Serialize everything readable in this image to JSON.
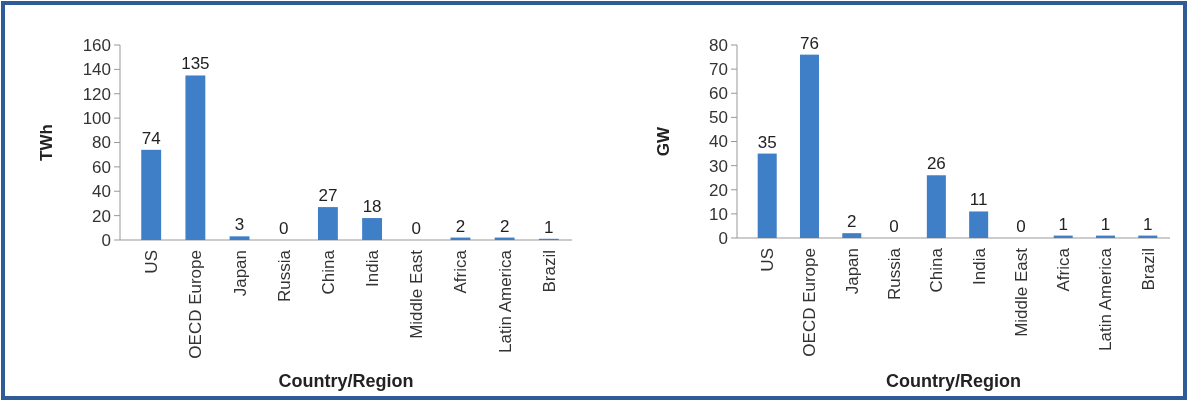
{
  "chart_data": [
    {
      "type": "bar",
      "xlabel": "Country/Region",
      "ylabel": "TWh",
      "categories": [
        "US",
        "OECD Europe",
        "Japan",
        "Russia",
        "China",
        "India",
        "Middle East",
        "Africa",
        "Latin America",
        "Brazil"
      ],
      "values": [
        74,
        135,
        3,
        0,
        27,
        18,
        0,
        2,
        2,
        1
      ],
      "color": "#3f7fc8",
      "ylim": [
        0,
        160
      ],
      "yticks": [
        0,
        20,
        40,
        60,
        80,
        100,
        120,
        140,
        160
      ],
      "data_labels": true
    },
    {
      "type": "bar",
      "xlabel": "Country/Region",
      "ylabel": "GW",
      "categories": [
        "US",
        "OECD Europe",
        "Japan",
        "Russia",
        "China",
        "India",
        "Middle East",
        "Africa",
        "Latin America",
        "Brazil"
      ],
      "values": [
        35,
        76,
        2,
        0,
        26,
        11,
        0,
        1,
        1,
        1
      ],
      "color": "#3f7fc8",
      "ylim": [
        0,
        80
      ],
      "yticks": [
        0,
        10,
        20,
        30,
        40,
        50,
        60,
        70,
        80
      ],
      "data_labels": true
    }
  ]
}
